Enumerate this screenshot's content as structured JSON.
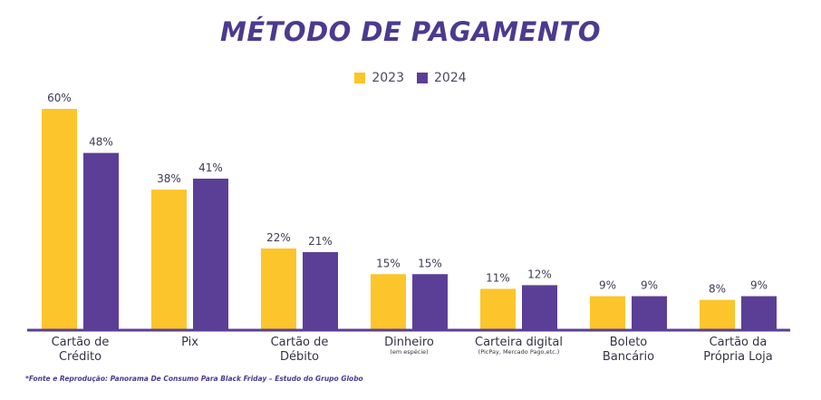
{
  "colors": {
    "y2023": "#fcc52b",
    "y2024": "#5b3f96",
    "axis": "#5b3f96",
    "title": "#4b3a8f"
  },
  "chart_data": {
    "type": "bar",
    "title": "MÉTODO DE PAGAMENTO",
    "xlabel": "",
    "ylabel": "",
    "ylim": [
      0,
      60
    ],
    "grid": false,
    "legend_position": "top-center",
    "categories": [
      {
        "lines": [
          "Cartão de",
          "Crédito"
        ],
        "sub": ""
      },
      {
        "lines": [
          "Pix"
        ],
        "sub": ""
      },
      {
        "lines": [
          "Cartão de",
          "Débito"
        ],
        "sub": ""
      },
      {
        "lines": [
          "Dinheiro"
        ],
        "sub": "(em espécie)"
      },
      {
        "lines": [
          "Carteira digital"
        ],
        "sub": "(PicPay, Mercado Pago,etc.)"
      },
      {
        "lines": [
          "Boleto",
          "Bancário"
        ],
        "sub": ""
      },
      {
        "lines": [
          "Cartão da",
          "Própria Loja"
        ],
        "sub": ""
      }
    ],
    "series": [
      {
        "name": "2023",
        "values": [
          60,
          38,
          22,
          15,
          11,
          9,
          8
        ],
        "labels": [
          "60%",
          "38%",
          "22%",
          "15%",
          "11%",
          "9%",
          "8%"
        ]
      },
      {
        "name": "2024",
        "values": [
          48,
          41,
          21,
          15,
          12,
          9,
          9
        ],
        "labels": [
          "48%",
          "41%",
          "21%",
          "15%",
          "12%",
          "9%",
          "9%"
        ]
      }
    ]
  },
  "source_note": "*Fonte e Reprodução: Panorama De Consumo Para Black Friday – Estudo do Grupo Globo"
}
